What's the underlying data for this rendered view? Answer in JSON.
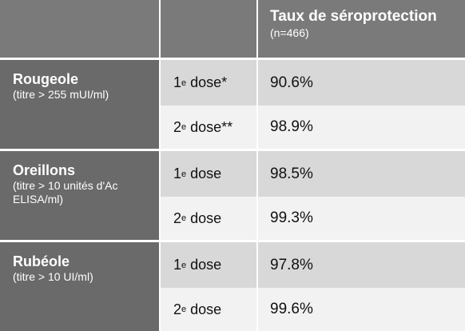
{
  "header": {
    "col1": "",
    "col2": "",
    "col3_title": "Taux de séroprotection",
    "col3_sub": "(n=466)"
  },
  "groups": [
    {
      "name": "Rougeole",
      "note": "(titre > 255 mUI/ml)",
      "rows": [
        {
          "num": "1",
          "sup": "e",
          "label": " dose*",
          "value": "90.6%"
        },
        {
          "num": "2",
          "sup": "e",
          "label": " dose**",
          "value": "98.9%"
        }
      ]
    },
    {
      "name": "Oreillons",
      "note": "(titre > 10 unités d'Ac ELISA/ml)",
      "rows": [
        {
          "num": "1",
          "sup": "e",
          "label": " dose",
          "value": "98.5%"
        },
        {
          "num": "2",
          "sup": "e",
          "label": " dose",
          "value": "99.3%"
        }
      ]
    },
    {
      "name": "Rubéole",
      "note": "(titre > 10 UI/ml)",
      "rows": [
        {
          "num": "1",
          "sup": "e",
          "label": " dose",
          "value": "97.8%"
        },
        {
          "num": "2",
          "sup": "e",
          "label": " dose",
          "value": "99.6%"
        }
      ]
    }
  ],
  "colors": {
    "header_bg": "#7a7a7a",
    "group_bg": "#6a6a6a",
    "row_shaded": "#d8d8d8",
    "row_light": "#f2f2f2"
  }
}
